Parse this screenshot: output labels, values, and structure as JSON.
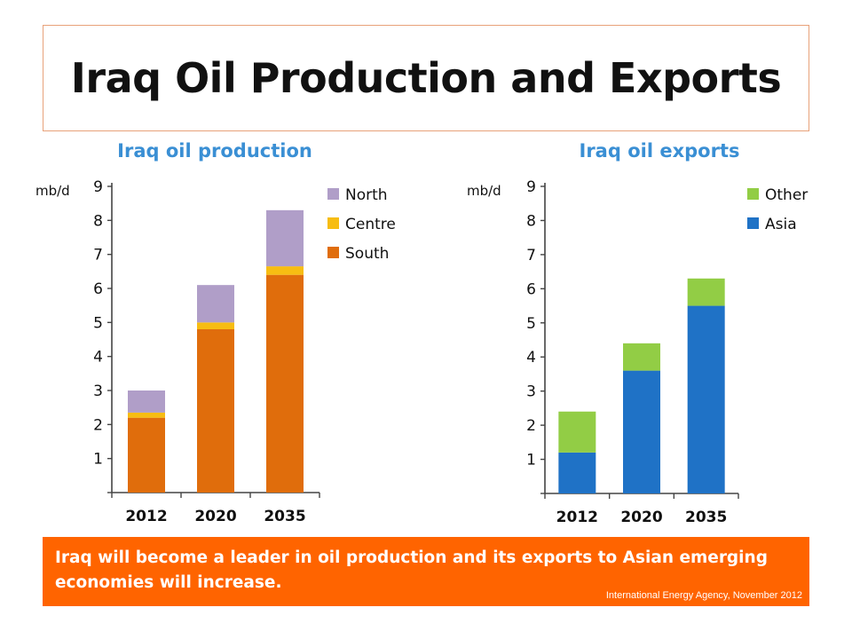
{
  "slide": {
    "title": "Iraq Oil Production and Exports",
    "caption": "Iraq will become a leader in oil production and its exports to Asian emerging economies will increase.",
    "source": "International Energy Agency, November 2012"
  },
  "chart_data": [
    {
      "type": "bar",
      "stacked": true,
      "title": "Iraq oil production",
      "ylabel": "mb/d",
      "ylim": [
        0,
        9
      ],
      "yticks": [
        1,
        2,
        3,
        4,
        5,
        6,
        7,
        8,
        9
      ],
      "categories": [
        "2012",
        "2020",
        "2035"
      ],
      "series": [
        {
          "name": "South",
          "color": "#e06d0c",
          "values": [
            2.2,
            4.8,
            6.4
          ]
        },
        {
          "name": "Centre",
          "color": "#f7bd12",
          "values": [
            0.15,
            0.2,
            0.25
          ]
        },
        {
          "name": "North",
          "color": "#b09ec8",
          "values": [
            0.65,
            1.1,
            1.65
          ]
        }
      ],
      "legend": {
        "position": "top-right",
        "order": [
          "North",
          "Centre",
          "South"
        ]
      },
      "grid": false
    },
    {
      "type": "bar",
      "stacked": true,
      "title": "Iraq oil exports",
      "ylabel": "mb/d",
      "ylim": [
        0,
        9
      ],
      "yticks": [
        1,
        2,
        3,
        4,
        5,
        6,
        7,
        8,
        9
      ],
      "categories": [
        "2012",
        "2020",
        "2035"
      ],
      "series": [
        {
          "name": "Asia",
          "color": "#1f72c6",
          "values": [
            1.2,
            3.6,
            5.5
          ]
        },
        {
          "name": "Other",
          "color": "#92cd45",
          "values": [
            1.2,
            0.8,
            0.8
          ]
        }
      ],
      "legend": {
        "position": "top-right",
        "order": [
          "Other",
          "Asia"
        ]
      },
      "grid": false
    }
  ]
}
